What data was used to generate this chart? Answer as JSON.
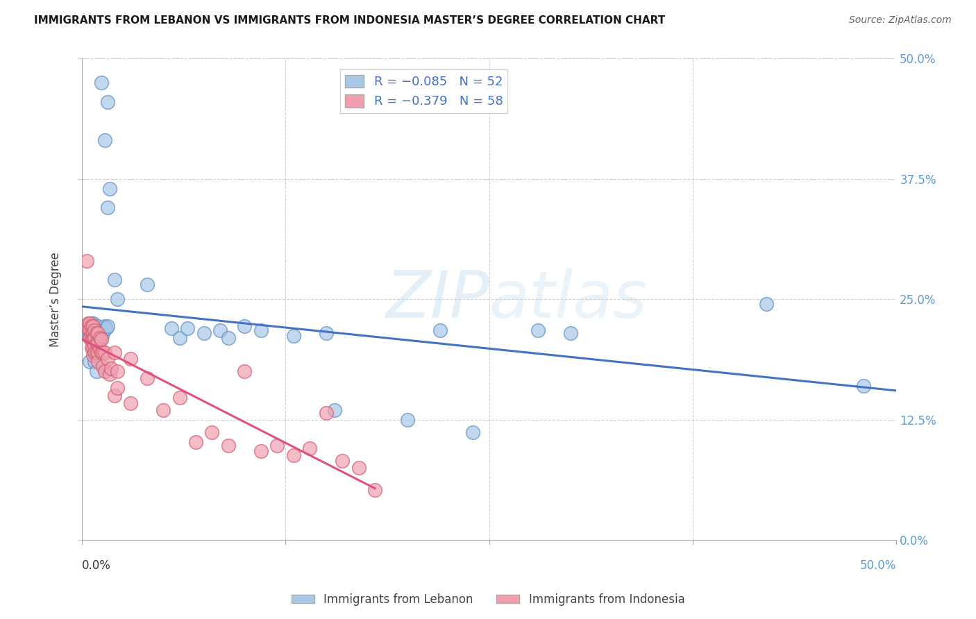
{
  "title": "IMMIGRANTS FROM LEBANON VS IMMIGRANTS FROM INDONESIA MASTER’S DEGREE CORRELATION CHART",
  "source": "Source: ZipAtlas.com",
  "ylabel": "Master’s Degree",
  "xlim": [
    0.0,
    0.5
  ],
  "ylim": [
    0.0,
    0.5
  ],
  "ytick_labels": [
    "0.0%",
    "12.5%",
    "25.0%",
    "37.5%",
    "50.0%"
  ],
  "ytick_values": [
    0.0,
    0.125,
    0.25,
    0.375,
    0.5
  ],
  "xtick_values": [
    0.0,
    0.125,
    0.25,
    0.375,
    0.5
  ],
  "lebanon_color": "#a8c8e8",
  "lebanon_edge_color": "#6090c0",
  "indonesia_color": "#f0a0b0",
  "indonesia_edge_color": "#d06070",
  "regression_lebanon_color": "#4472c4",
  "regression_indonesia_color": "#e05080",
  "watermark": "ZIPatlas",
  "background_color": "#ffffff",
  "grid_color": "#cccccc",
  "lebanon_x": [
    0.012,
    0.016,
    0.014,
    0.017,
    0.016,
    0.004,
    0.004,
    0.005,
    0.005,
    0.006,
    0.006,
    0.007,
    0.007,
    0.008,
    0.008,
    0.009,
    0.009,
    0.01,
    0.01,
    0.01,
    0.011,
    0.011,
    0.012,
    0.012,
    0.013,
    0.014,
    0.015,
    0.016,
    0.02,
    0.022,
    0.04,
    0.055,
    0.06,
    0.065,
    0.075,
    0.085,
    0.09,
    0.1,
    0.11,
    0.13,
    0.15,
    0.155,
    0.2,
    0.22,
    0.24,
    0.28,
    0.3,
    0.42,
    0.48,
    0.005,
    0.008,
    0.009
  ],
  "lebanon_y": [
    0.475,
    0.455,
    0.415,
    0.365,
    0.345,
    0.215,
    0.215,
    0.215,
    0.215,
    0.225,
    0.22,
    0.225,
    0.22,
    0.22,
    0.215,
    0.22,
    0.215,
    0.222,
    0.218,
    0.21,
    0.218,
    0.212,
    0.216,
    0.21,
    0.214,
    0.222,
    0.22,
    0.222,
    0.27,
    0.25,
    0.265,
    0.22,
    0.21,
    0.22,
    0.215,
    0.218,
    0.21,
    0.222,
    0.218,
    0.212,
    0.215,
    0.135,
    0.125,
    0.218,
    0.112,
    0.218,
    0.215,
    0.245,
    0.16,
    0.185,
    0.185,
    0.175
  ],
  "indonesia_x": [
    0.003,
    0.004,
    0.004,
    0.005,
    0.005,
    0.005,
    0.006,
    0.006,
    0.006,
    0.006,
    0.007,
    0.007,
    0.007,
    0.007,
    0.007,
    0.008,
    0.008,
    0.008,
    0.008,
    0.009,
    0.009,
    0.009,
    0.01,
    0.01,
    0.01,
    0.01,
    0.011,
    0.011,
    0.012,
    0.012,
    0.013,
    0.013,
    0.014,
    0.014,
    0.016,
    0.017,
    0.018,
    0.02,
    0.02,
    0.022,
    0.022,
    0.03,
    0.03,
    0.04,
    0.05,
    0.06,
    0.07,
    0.08,
    0.09,
    0.1,
    0.11,
    0.12,
    0.13,
    0.14,
    0.15,
    0.16,
    0.17,
    0.18
  ],
  "indonesia_y": [
    0.29,
    0.225,
    0.22,
    0.225,
    0.218,
    0.21,
    0.222,
    0.215,
    0.208,
    0.2,
    0.222,
    0.215,
    0.208,
    0.2,
    0.192,
    0.218,
    0.21,
    0.202,
    0.195,
    0.215,
    0.205,
    0.195,
    0.215,
    0.205,
    0.195,
    0.185,
    0.21,
    0.198,
    0.208,
    0.195,
    0.195,
    0.18,
    0.195,
    0.175,
    0.188,
    0.172,
    0.178,
    0.195,
    0.15,
    0.175,
    0.158,
    0.188,
    0.142,
    0.168,
    0.135,
    0.148,
    0.102,
    0.112,
    0.098,
    0.175,
    0.092,
    0.098,
    0.088,
    0.095,
    0.132,
    0.082,
    0.075,
    0.052
  ]
}
